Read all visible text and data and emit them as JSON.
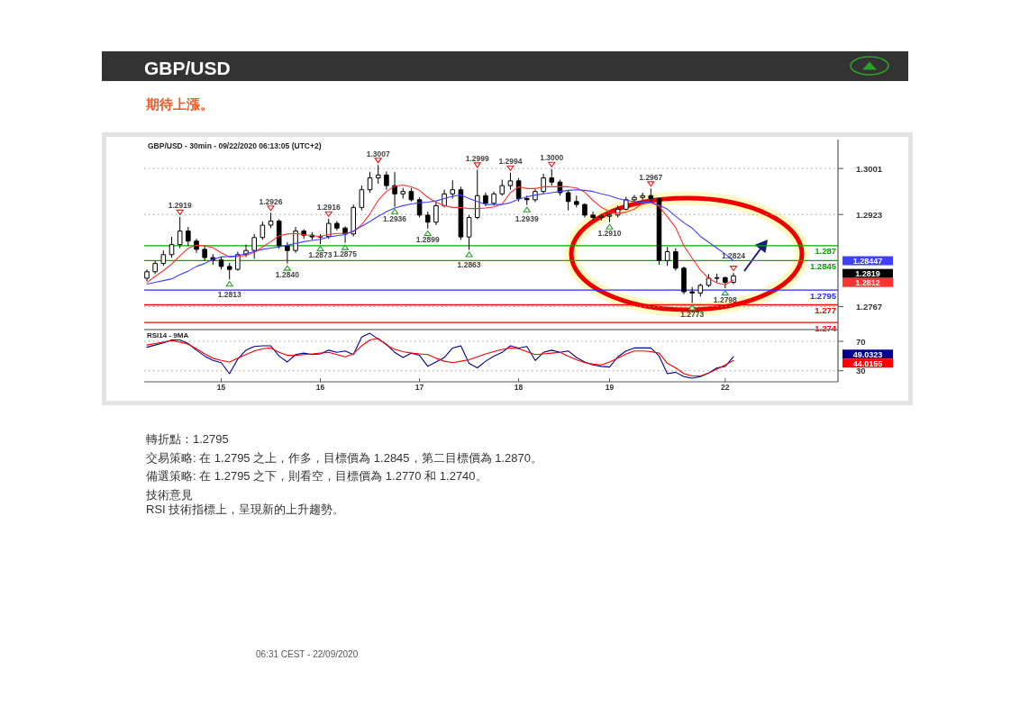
{
  "chart_data": [
    {
      "type": "candlestick",
      "title": "GBP/USD",
      "subtitle": "期待上漲。",
      "annotations": [
        "GBP/USD - 30min - 09/22/2020 06:13:05 (UTC+2)",
        {
          "text": "1.2919",
          "y": 1.2919
        },
        {
          "text": "1.2813",
          "y": 1.2813
        },
        {
          "text": "1.2926",
          "y": 1.2926
        },
        {
          "text": "1.2840",
          "y": 1.284
        },
        {
          "text": "1.2873",
          "y": 1.2873
        },
        {
          "text": "1.2916",
          "y": 1.2916
        },
        {
          "text": "1.2875",
          "y": 1.2875
        },
        {
          "text": "1.3007",
          "y": 1.3007
        },
        {
          "text": "1.2936",
          "y": 1.2936
        },
        {
          "text": "1.2899",
          "y": 1.2899
        },
        {
          "text": "1.2863",
          "y": 1.2863
        },
        {
          "text": "1.2999",
          "y": 1.2999
        },
        {
          "text": "1.2994",
          "y": 1.2994
        },
        {
          "text": "1.2939",
          "y": 1.2939
        },
        {
          "text": "1.3000",
          "y": 1.3
        },
        {
          "text": "1.2910",
          "y": 1.291
        },
        {
          "text": "1.2967",
          "y": 1.2967
        },
        {
          "text": "1.2773",
          "y": 1.2773
        },
        {
          "text": "1.2798",
          "y": 1.2798
        },
        {
          "text": "1.2824",
          "y": 1.2824
        },
        "1.28447",
        "1.2819",
        "1.2812"
      ],
      "categories": [
        null,
        null,
        null,
        null,
        null,
        null,
        null,
        null,
        null,
        null,
        null,
        null,
        null,
        null,
        null,
        null,
        null,
        null,
        null,
        null,
        null,
        null,
        null,
        null,
        null,
        null,
        null,
        null,
        null,
        null,
        null,
        null,
        null,
        null,
        null,
        null,
        null,
        null,
        null,
        null,
        null,
        null,
        null,
        null,
        null,
        null,
        null,
        null,
        null,
        null,
        null,
        null,
        null,
        null,
        null,
        null,
        null,
        null,
        null,
        null,
        null,
        null,
        null,
        null,
        null,
        null,
        null,
        null,
        null,
        null,
        null,
        null
      ],
      "ohlc": [
        [
          1.2815,
          1.283,
          1.281,
          1.2826
        ],
        [
          1.2826,
          1.2845,
          1.2822,
          1.284
        ],
        [
          1.284,
          1.2862,
          1.2836,
          1.2855
        ],
        [
          1.2855,
          1.2885,
          1.285,
          1.2872
        ],
        [
          1.2872,
          1.2919,
          1.2866,
          1.2895
        ],
        [
          1.2895,
          1.2902,
          1.287,
          1.2878
        ],
        [
          1.2878,
          1.2882,
          1.2858,
          1.2864
        ],
        [
          1.2864,
          1.287,
          1.2845,
          1.285
        ],
        [
          1.285,
          1.2856,
          1.2838,
          1.2846
        ],
        [
          1.2846,
          1.2852,
          1.283,
          1.2835
        ],
        [
          1.2835,
          1.2841,
          1.2813,
          1.283
        ],
        [
          1.283,
          1.286,
          1.2828,
          1.2855
        ],
        [
          1.2855,
          1.2872,
          1.2851,
          1.2862
        ],
        [
          1.2862,
          1.289,
          1.2848,
          1.2884
        ],
        [
          1.2884,
          1.2911,
          1.288,
          1.2905
        ],
        [
          1.2905,
          1.2926,
          1.29,
          1.2912
        ],
        [
          1.2912,
          1.2915,
          1.2865,
          1.287
        ],
        [
          1.287,
          1.2876,
          1.284,
          1.2862
        ],
        [
          1.2862,
          1.2902,
          1.2858,
          1.2895
        ],
        [
          1.2895,
          1.2898,
          1.2882,
          1.2888
        ],
        [
          1.2888,
          1.2893,
          1.288,
          1.2885
        ],
        [
          1.2885,
          1.289,
          1.2873,
          1.2886
        ],
        [
          1.2886,
          1.2916,
          1.2882,
          1.2908
        ],
        [
          1.2908,
          1.2912,
          1.2896,
          1.29
        ],
        [
          1.29,
          1.2903,
          1.2875,
          1.289
        ],
        [
          1.289,
          1.294,
          1.2886,
          1.2935
        ],
        [
          1.2935,
          1.2972,
          1.293,
          1.2965
        ],
        [
          1.2965,
          1.2995,
          1.296,
          1.2985
        ],
        [
          1.2985,
          1.3007,
          1.2975,
          1.299
        ],
        [
          1.299,
          1.2996,
          1.2965,
          1.2972
        ],
        [
          1.2972,
          1.2995,
          1.2936,
          1.2958
        ],
        [
          1.2958,
          1.2968,
          1.295,
          1.2962
        ],
        [
          1.2962,
          1.2968,
          1.2945,
          1.2948
        ],
        [
          1.2948,
          1.2952,
          1.2918,
          1.2922
        ],
        [
          1.2922,
          1.2928,
          1.2899,
          1.291
        ],
        [
          1.291,
          1.2945,
          1.2905,
          1.2938
        ],
        [
          1.2938,
          1.2965,
          1.2935,
          1.2958
        ],
        [
          1.2958,
          1.2981,
          1.295,
          1.2965
        ],
        [
          1.2965,
          1.297,
          1.288,
          1.2885
        ],
        [
          1.2885,
          1.2922,
          1.2863,
          1.2918
        ],
        [
          1.2918,
          1.2999,
          1.2915,
          1.2955
        ],
        [
          1.2955,
          1.296,
          1.2937,
          1.2942
        ],
        [
          1.2942,
          1.2962,
          1.2938,
          1.2958
        ],
        [
          1.2958,
          1.2982,
          1.2955,
          1.2972
        ],
        [
          1.2972,
          1.2994,
          1.2965,
          1.298
        ],
        [
          1.298,
          1.2985,
          1.2945,
          1.295
        ],
        [
          1.295,
          1.2955,
          1.2939,
          1.2948
        ],
        [
          1.2948,
          1.2966,
          1.2944,
          1.2962
        ],
        [
          1.2962,
          1.2992,
          1.2958,
          1.2985
        ],
        [
          1.2985,
          1.3,
          1.2972,
          1.2978
        ],
        [
          1.2978,
          1.2982,
          1.2955,
          1.296
        ],
        [
          1.296,
          1.2965,
          1.293,
          1.2945
        ],
        [
          1.2945,
          1.2955,
          1.2935,
          1.294
        ],
        [
          1.294,
          1.2942,
          1.2918,
          1.2922
        ],
        [
          1.2922,
          1.2928,
          1.2914,
          1.2918
        ],
        [
          1.2918,
          1.2924,
          1.2913,
          1.292
        ],
        [
          1.292,
          1.2925,
          1.291,
          1.2922
        ],
        [
          1.2922,
          1.2938,
          1.2918,
          1.2932
        ],
        [
          1.2932,
          1.2953,
          1.293,
          1.2948
        ],
        [
          1.2948,
          1.2956,
          1.2945,
          1.2952
        ],
        [
          1.2952,
          1.296,
          1.2948,
          1.2955
        ],
        [
          1.2955,
          1.2967,
          1.2945,
          1.295
        ],
        [
          1.295,
          1.2952,
          1.2838,
          1.2845
        ],
        [
          1.2845,
          1.2868,
          1.2836,
          1.286
        ],
        [
          1.286,
          1.2866,
          1.2828,
          1.2832
        ],
        [
          1.2832,
          1.2835,
          1.2788,
          1.2792
        ],
        [
          1.2792,
          1.28,
          1.2773,
          1.279
        ],
        [
          1.279,
          1.2806,
          1.2784,
          1.2803
        ],
        [
          1.2803,
          1.2822,
          1.28,
          1.2815
        ],
        [
          1.2815,
          1.2823,
          1.2808,
          1.2816
        ],
        [
          1.2816,
          1.2818,
          1.2798,
          1.2808
        ],
        [
          1.2808,
          1.2824,
          1.2805,
          1.2819
        ]
      ],
      "series": [
        {
          "type": "line",
          "color": "#ff3333",
          "values": [
            1.2808,
            1.2818,
            1.2828,
            1.2839,
            1.2853,
            1.2866,
            1.2871,
            1.287,
            1.2867,
            1.2858,
            1.2851,
            1.2852,
            1.2854,
            1.2859,
            1.2868,
            1.2877,
            1.2887,
            1.289,
            1.2891,
            1.2889,
            1.2887,
            1.2886,
            1.2889,
            1.2891,
            1.2891,
            1.2894,
            1.2906,
            1.2924,
            1.2947,
            1.2962,
            1.2971,
            1.2973,
            1.297,
            1.2964,
            1.2952,
            1.2944,
            1.2938,
            1.2935,
            1.2935,
            1.2933,
            1.2933,
            1.2934,
            1.2936,
            1.2941,
            1.296,
            1.297,
            1.2967,
            1.2967,
            1.297,
            1.297,
            1.297,
            1.297,
            1.2968,
            1.2961,
            1.2947,
            1.2935,
            1.2928,
            1.2925,
            1.2927,
            1.2932,
            1.2942,
            1.2943,
            1.2937,
            1.2919,
            1.2901,
            1.287,
            1.2849,
            1.2829,
            1.2815,
            1.2807,
            1.2804,
            1.2812
          ]
        },
        {
          "type": "line",
          "color": "#4040ff",
          "values": [
            1.2805,
            1.2808,
            1.2811,
            1.2814,
            1.2821,
            1.2827,
            1.2835,
            1.284,
            1.2847,
            1.2851,
            1.2852,
            1.2853,
            1.2857,
            1.286,
            1.2864,
            1.2866,
            1.2868,
            1.2871,
            1.2874,
            1.2877,
            1.2879,
            1.2881,
            1.2885,
            1.2887,
            1.2889,
            1.2895,
            1.2903,
            1.2911,
            1.292,
            1.2928,
            1.2934,
            1.2938,
            1.2941,
            1.2943,
            1.2944,
            1.2946,
            1.295,
            1.2954,
            1.2956,
            1.295,
            1.2945,
            1.294,
            1.294,
            1.294,
            1.2943,
            1.2949,
            1.2953,
            1.2956,
            1.2958,
            1.296,
            1.2962,
            1.2964,
            1.2965,
            1.2964,
            1.2962,
            1.2958,
            1.2955,
            1.295,
            1.2947,
            1.2945,
            1.2944,
            1.2944,
            1.2939,
            1.2932,
            1.292,
            1.2909,
            1.29,
            1.2886,
            1.2876,
            1.2866,
            1.2856,
            1.28447
          ]
        }
      ],
      "ylim": [
        1.2728,
        1.305
      ],
      "yticks": [
        1.2767,
        1.2923,
        1.3001
      ],
      "grid": "y",
      "tick_labels": "y",
      "ref_lines": [
        {
          "axis": "y",
          "value": 1.287,
          "label": "1.287",
          "color": "#00aa00"
        },
        {
          "axis": "y",
          "value": 1.2845,
          "label": "1.2845",
          "color": "#00aa00"
        },
        {
          "axis": "y",
          "value": 1.2795,
          "label": "1.2795",
          "color": "#2b2bff"
        },
        {
          "axis": "y",
          "value": 1.277,
          "label": "1.277",
          "color": "#ff0000"
        },
        {
          "axis": "y",
          "value": 1.274,
          "label": "1.274",
          "color": "#ff0000"
        }
      ]
    },
    {
      "type": "line",
      "title": "RSI14 - 9MA",
      "annotations": [
        "49.0323",
        "44.0155"
      ],
      "categories": [
        null,
        null,
        null,
        null,
        null,
        null,
        null,
        null,
        null,
        "15",
        null,
        null,
        null,
        null,
        null,
        null,
        null,
        null,
        null,
        null,
        null,
        "16",
        null,
        null,
        null,
        null,
        null,
        null,
        null,
        null,
        null,
        null,
        null,
        "17",
        null,
        null,
        null,
        null,
        null,
        null,
        null,
        null,
        null,
        null,
        null,
        "18",
        null,
        null,
        null,
        null,
        null,
        null,
        null,
        null,
        null,
        null,
        "19",
        null,
        null,
        null,
        null,
        null,
        null,
        null,
        null,
        null,
        null,
        null,
        null,
        null,
        "22",
        null
      ],
      "series": [
        {
          "color": "#00008b",
          "values": [
            62,
            65,
            68,
            72,
            72,
            67,
            58,
            50,
            44,
            41,
            26,
            46,
            58,
            63,
            64,
            64,
            50,
            42,
            52,
            54,
            52,
            53,
            58,
            55,
            57,
            52,
            76,
            81,
            73,
            66,
            55,
            48,
            54,
            51,
            36,
            42,
            48,
            61,
            64,
            40,
            34,
            43,
            50,
            55,
            64,
            61,
            63,
            44,
            55,
            58,
            55,
            57,
            48,
            42,
            38,
            36,
            35,
            49,
            57,
            61,
            61,
            61,
            50,
            26,
            28,
            22,
            20,
            22,
            27,
            34,
            36,
            49.0323
          ]
        },
        {
          "color": "#ff0000",
          "values": [
            65,
            67,
            69,
            71,
            69,
            66,
            60,
            53,
            47,
            44,
            42,
            47,
            52,
            57,
            60,
            61,
            55,
            51,
            51,
            52,
            53,
            54,
            55,
            52,
            49,
            53,
            64,
            72,
            74,
            65,
            59,
            56,
            54,
            53,
            52,
            47,
            43,
            41,
            43,
            45,
            49,
            53,
            56,
            59,
            61,
            60,
            56,
            52,
            53,
            54,
            55,
            50,
            45,
            41,
            39,
            38,
            42,
            47,
            53,
            57,
            57,
            56,
            54,
            40,
            34,
            26,
            23,
            23,
            27,
            32,
            38,
            44.0155
          ]
        }
      ],
      "ylim": [
        15,
        86
      ],
      "yticks": [
        30,
        70
      ],
      "grid": "y"
    },
    {
      "type": "other",
      "annotations": [
        "轉折點：1.2795",
        "交易策略: 在 1.2795 之上，作多，目標價為  1.2845，第二目標價為  1.2870。",
        "備選策略: 在 1.2795 之下，則看空，目標價為  1.2770 和 1.2740。",
        "技術意見",
        "RSI 技術指標上，呈現新的上升趨勢。",
        "06:31 CEST - 22/09/2020"
      ]
    }
  ]
}
